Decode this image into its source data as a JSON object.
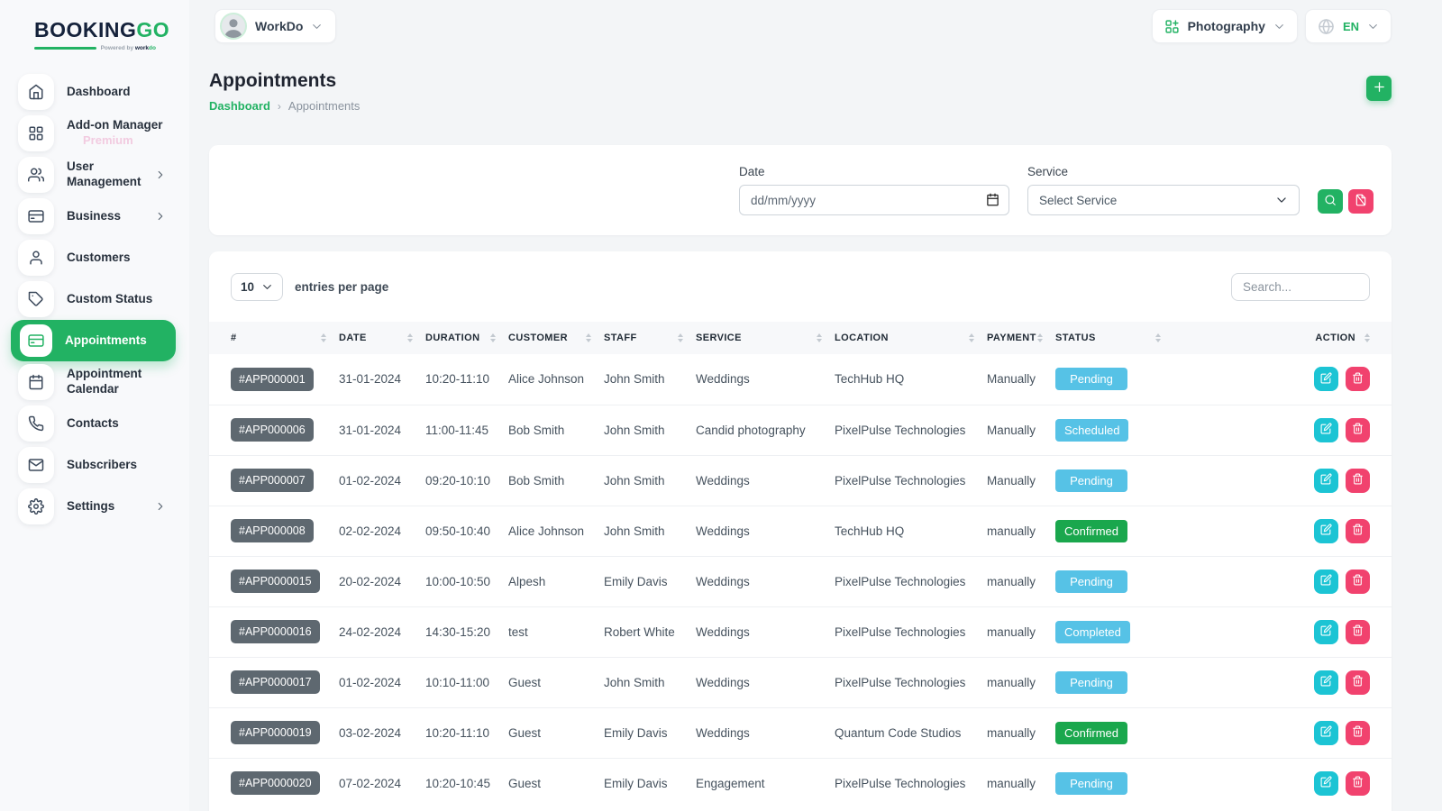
{
  "colors": {
    "accent": "#22B263",
    "info": "#56C2E6",
    "success": "#1AA74D",
    "edit": "#1CC4D4",
    "danger": "#F1426E",
    "id_badge": "#5E6870",
    "premium": "#F2CBE0"
  },
  "brand": {
    "name_primary": "BOOKING",
    "name_secondary": "GO",
    "powered_prefix": "Powered by",
    "powered_brand_a": "work",
    "powered_brand_b": "do"
  },
  "topbar": {
    "workspace": "WorkDo",
    "module": "Photography",
    "language": "EN"
  },
  "sidebar": {
    "items": [
      {
        "label": "Dashboard",
        "icon": "home",
        "active": false,
        "chevron": false,
        "sublabel": ""
      },
      {
        "label": "Add-on Manager",
        "icon": "grid",
        "active": false,
        "chevron": false,
        "sublabel": "Premium"
      },
      {
        "label": "User Management",
        "icon": "users",
        "active": false,
        "chevron": true,
        "sublabel": ""
      },
      {
        "label": "Business",
        "icon": "credit-card",
        "active": false,
        "chevron": true,
        "sublabel": ""
      },
      {
        "label": "Customers",
        "icon": "user",
        "active": false,
        "chevron": false,
        "sublabel": ""
      },
      {
        "label": "Custom Status",
        "icon": "tag",
        "active": false,
        "chevron": false,
        "sublabel": ""
      },
      {
        "label": "Appointments",
        "icon": "credit-card",
        "active": true,
        "chevron": false,
        "sublabel": ""
      },
      {
        "label": "Appointment Calendar",
        "icon": "calendar",
        "active": false,
        "chevron": false,
        "sublabel": ""
      },
      {
        "label": "Contacts",
        "icon": "phone",
        "active": false,
        "chevron": false,
        "sublabel": ""
      },
      {
        "label": "Subscribers",
        "icon": "mail",
        "active": false,
        "chevron": false,
        "sublabel": ""
      },
      {
        "label": "Settings",
        "icon": "gear",
        "active": false,
        "chevron": true,
        "sublabel": ""
      }
    ]
  },
  "page": {
    "title": "Appointments",
    "breadcrumb_root": "Dashboard",
    "breadcrumb_current": "Appointments"
  },
  "filters": {
    "date_label": "Date",
    "date_placeholder": "dd/mm/yyyy",
    "service_label": "Service",
    "service_value": "Select Service"
  },
  "table": {
    "entries_value": "10",
    "entries_label": "entries per page",
    "search_placeholder": "Search...",
    "columns": [
      "#",
      "DATE",
      "DURATION",
      "CUSTOMER",
      "STAFF",
      "SERVICE",
      "LOCATION",
      "PAYMENT",
      "STATUS",
      "ACTION"
    ],
    "rows": [
      {
        "id": "#APP000001",
        "date": "31-01-2024",
        "duration": "10:20-11:10",
        "customer": "Alice Johnson",
        "staff": "John Smith",
        "service": "Weddings",
        "location": "TechHub HQ",
        "payment": "Manually",
        "status": "Pending",
        "status_type": "info"
      },
      {
        "id": "#APP000006",
        "date": "31-01-2024",
        "duration": "11:00-11:45",
        "customer": "Bob Smith",
        "staff": "John Smith",
        "service": "Candid photography",
        "location": "PixelPulse Technologies",
        "payment": "Manually",
        "status": "Scheduled",
        "status_type": "info"
      },
      {
        "id": "#APP000007",
        "date": "01-02-2024",
        "duration": "09:20-10:10",
        "customer": "Bob Smith",
        "staff": "John Smith",
        "service": "Weddings",
        "location": "PixelPulse Technologies",
        "payment": "Manually",
        "status": "Pending",
        "status_type": "info"
      },
      {
        "id": "#APP000008",
        "date": "02-02-2024",
        "duration": "09:50-10:40",
        "customer": "Alice Johnson",
        "staff": "John Smith",
        "service": "Weddings",
        "location": "TechHub HQ",
        "payment": "manually",
        "status": "Confirmed",
        "status_type": "success"
      },
      {
        "id": "#APP0000015",
        "date": "20-02-2024",
        "duration": "10:00-10:50",
        "customer": "Alpesh",
        "staff": "Emily Davis",
        "service": "Weddings",
        "location": "PixelPulse Technologies",
        "payment": "manually",
        "status": "Pending",
        "status_type": "info"
      },
      {
        "id": "#APP0000016",
        "date": "24-02-2024",
        "duration": "14:30-15:20",
        "customer": "test",
        "staff": "Robert White",
        "service": "Weddings",
        "location": "PixelPulse Technologies",
        "payment": "manually",
        "status": "Completed",
        "status_type": "info"
      },
      {
        "id": "#APP0000017",
        "date": "01-02-2024",
        "duration": "10:10-11:00",
        "customer": "Guest",
        "staff": "John Smith",
        "service": "Weddings",
        "location": "PixelPulse Technologies",
        "payment": "manually",
        "status": "Pending",
        "status_type": "info"
      },
      {
        "id": "#APP0000019",
        "date": "03-02-2024",
        "duration": "10:20-11:10",
        "customer": "Guest",
        "staff": "Emily Davis",
        "service": "Weddings",
        "location": "Quantum Code Studios",
        "payment": "manually",
        "status": "Confirmed",
        "status_type": "success"
      },
      {
        "id": "#APP0000020",
        "date": "07-02-2024",
        "duration": "10:20-10:45",
        "customer": "Guest",
        "staff": "Emily Davis",
        "service": "Engagement",
        "location": "PixelPulse Technologies",
        "payment": "manually",
        "status": "Pending",
        "status_type": "info"
      }
    ]
  }
}
